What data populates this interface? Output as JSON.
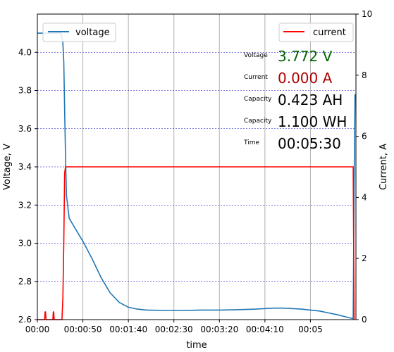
{
  "chart_data": {
    "type": "line",
    "xlabel": "time",
    "ylabel_left": "Voltage, V",
    "ylabel_right": "Current, A",
    "x_unit": "seconds",
    "xlim": [
      0,
      350
    ],
    "ylim_left": [
      2.6,
      4.2
    ],
    "ylim_right": [
      0,
      10
    ],
    "x_ticks": [
      0,
      50,
      100,
      150,
      200,
      250,
      300
    ],
    "x_tick_labels": [
      "00:00",
      "00:00:50",
      "00:01:40",
      "00:02:30",
      "00:03:20",
      "00:04:10",
      "00:05"
    ],
    "y_left_ticks": [
      2.6,
      2.8,
      3.0,
      3.2,
      3.4,
      3.6,
      3.8,
      4.0
    ],
    "y_left_tick_labels": [
      "2.6",
      "2.8",
      "3.0",
      "3.2",
      "3.4",
      "3.6",
      "3.8",
      "4.0"
    ],
    "y_right_ticks": [
      0,
      2,
      4,
      6,
      8,
      10
    ],
    "y_right_tick_labels": [
      "0",
      "2",
      "4",
      "6",
      "8",
      "10"
    ],
    "grid": true,
    "series": [
      {
        "name": "voltage",
        "color": "#1f77b4",
        "axis": "left",
        "x": [
          0,
          20,
          26,
          28,
          29,
          30,
          31,
          32,
          35,
          40,
          50,
          60,
          70,
          80,
          90,
          100,
          110,
          120,
          140,
          160,
          180,
          200,
          220,
          240,
          250,
          260,
          270,
          280,
          290,
          300,
          310,
          320,
          330,
          340,
          347,
          348,
          349
        ],
        "y": [
          4.1,
          4.1,
          4.1,
          4.05,
          3.95,
          3.7,
          3.45,
          3.25,
          3.13,
          3.09,
          3.01,
          2.92,
          2.82,
          2.74,
          2.69,
          2.665,
          2.655,
          2.65,
          2.648,
          2.648,
          2.65,
          2.65,
          2.652,
          2.655,
          2.658,
          2.66,
          2.66,
          2.658,
          2.655,
          2.65,
          2.645,
          2.635,
          2.625,
          2.613,
          2.605,
          3.3,
          3.78
        ]
      },
      {
        "name": "current",
        "color": "#ff0000",
        "axis": "right",
        "x": [
          0,
          8,
          8.5,
          9,
          9.5,
          10,
          17,
          17.5,
          18,
          18.5,
          19,
          27,
          28,
          29,
          30,
          31,
          35,
          347,
          348
        ],
        "y": [
          0,
          0,
          0.25,
          0.25,
          0,
          0,
          0,
          0.25,
          0.25,
          0,
          0,
          0,
          0.7,
          2.5,
          4.8,
          5.0,
          5.0,
          5.0,
          0
        ]
      }
    ]
  },
  "readout": [
    {
      "label": "Voltage",
      "value": "3.772 V",
      "color": "#006400"
    },
    {
      "label": "Current",
      "value": "0.000 A",
      "color": "#b00000"
    },
    {
      "label": "Capacity",
      "value": "0.423 AH",
      "color": "#000000"
    },
    {
      "label": "Capacity",
      "value": "1.100 WH",
      "color": "#000000"
    },
    {
      "label": "Time",
      "value": "00:05:30",
      "color": "#000000"
    }
  ]
}
